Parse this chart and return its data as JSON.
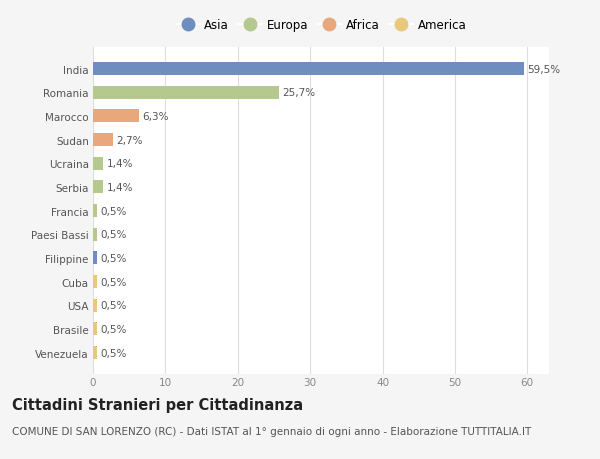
{
  "categories": [
    "India",
    "Romania",
    "Marocco",
    "Sudan",
    "Ucraina",
    "Serbia",
    "Francia",
    "Paesi Bassi",
    "Filippine",
    "Cuba",
    "USA",
    "Brasile",
    "Venezuela"
  ],
  "values": [
    59.5,
    25.7,
    6.3,
    2.7,
    1.4,
    1.4,
    0.5,
    0.5,
    0.5,
    0.5,
    0.5,
    0.5,
    0.5
  ],
  "labels": [
    "59,5%",
    "25,7%",
    "6,3%",
    "2,7%",
    "1,4%",
    "1,4%",
    "0,5%",
    "0,5%",
    "0,5%",
    "0,5%",
    "0,5%",
    "0,5%",
    "0,5%"
  ],
  "bar_colors": [
    "#6f8ebf",
    "#b5c98e",
    "#e8a87c",
    "#e8a87c",
    "#b5c98e",
    "#b5c98e",
    "#b5c98e",
    "#b5c98e",
    "#6f8ebf",
    "#e8c97c",
    "#e8c97c",
    "#e8c97c",
    "#e8c97c"
  ],
  "legend": [
    {
      "label": "Asia",
      "color": "#6f8ebf"
    },
    {
      "label": "Europa",
      "color": "#b5c98e"
    },
    {
      "label": "Africa",
      "color": "#e8a87c"
    },
    {
      "label": "America",
      "color": "#e8c97c"
    }
  ],
  "xlim": [
    0,
    63
  ],
  "xticks": [
    0,
    10,
    20,
    30,
    40,
    50,
    60
  ],
  "bg_color": "#f5f5f5",
  "plot_bg_color": "#ffffff",
  "grid_color": "#dddddd",
  "title": "Cittadini Stranieri per Cittadinanza",
  "subtitle": "COMUNE DI SAN LORENZO (RC) - Dati ISTAT al 1° gennaio di ogni anno - Elaborazione TUTTITALIA.IT",
  "title_fontsize": 10.5,
  "subtitle_fontsize": 7.5,
  "label_fontsize": 7.5,
  "tick_fontsize": 7.5,
  "bar_height": 0.55
}
